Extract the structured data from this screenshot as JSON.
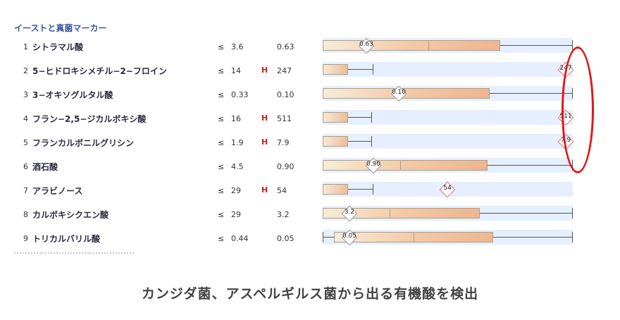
{
  "section_title": "イーストと真菌マーカー",
  "caption": "カンジダ菌、アスペルギルス菌から出る有機酸を検出",
  "rows": [
    {
      "index": "1",
      "name": "シトラマル酸",
      "leq": "≤",
      "ref": "3.6",
      "flag": "",
      "value": "0.63",
      "marker": "0.63"
    },
    {
      "index": "2",
      "name": "5−ヒドロキシメチル−2−フロイン",
      "leq": "≤",
      "ref": "14",
      "flag": "H",
      "value": "247",
      "marker": "247"
    },
    {
      "index": "3",
      "name": "3−オキソグルタル酸",
      "leq": "≤",
      "ref": "0.33",
      "flag": "",
      "value": "0.10",
      "marker": "0.10"
    },
    {
      "index": "4",
      "name": "フラン−2,5−ジカルボキシ酸",
      "leq": "≤",
      "ref": "16",
      "flag": "H",
      "value": "511",
      "marker": "511"
    },
    {
      "index": "5",
      "name": "フランカルボニルグリシン",
      "leq": "≤",
      "ref": "1.9",
      "flag": "H",
      "value": "7.9",
      "marker": "7.9"
    },
    {
      "index": "6",
      "name": "酒石酸",
      "leq": "≤",
      "ref": "4.5",
      "flag": "",
      "value": "0.90",
      "marker": "0.90"
    },
    {
      "index": "7",
      "name": "アラビノース",
      "leq": "≤",
      "ref": "29",
      "flag": "H",
      "value": "54",
      "marker": "54"
    },
    {
      "index": "8",
      "name": "カルボキシクエン酸",
      "leq": "≤",
      "ref": "29",
      "flag": "",
      "value": "3.2",
      "marker": "3.2"
    },
    {
      "index": "9",
      "name": "トリカルバリル酸",
      "leq": "≤",
      "ref": "0.44",
      "flag": "",
      "value": "0.05",
      "marker": "0.05"
    }
  ],
  "colors": {
    "flag": "#d21f1f",
    "highlight": "#e31515",
    "title": "#3a55a8"
  }
}
